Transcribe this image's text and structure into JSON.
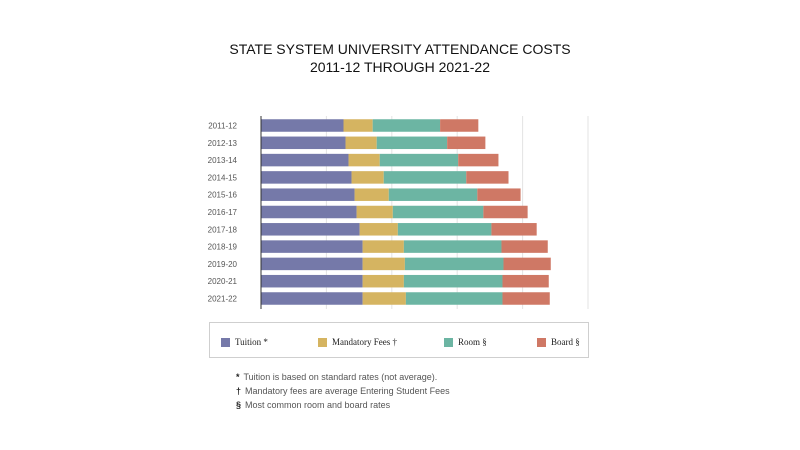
{
  "chart_data": {
    "type": "bar",
    "orientation": "horizontal",
    "stacked": true,
    "title": "STATE SYSTEM UNIVERSITY ATTENDANCE COSTS",
    "subtitle": "2011-12 THROUGH 2021-22",
    "xlabel": "",
    "ylabel": "",
    "categories": [
      "2011-12",
      "2012-13",
      "2013-14",
      "2014-15",
      "2015-16",
      "2016-17",
      "2017-18",
      "2018-19",
      "2019-20",
      "2020-21",
      "2021-22"
    ],
    "series": [
      {
        "name": "Tuition",
        "marker": "*",
        "color": "#7579a9",
        "values": [
          82,
          84,
          87,
          90,
          93,
          95,
          98,
          101,
          101,
          101,
          101
        ]
      },
      {
        "name": "Mandatory Fees",
        "marker": "†",
        "color": "#d5b461",
        "values": [
          29,
          31,
          31,
          32,
          34,
          36,
          38,
          41,
          42,
          41,
          43
        ]
      },
      {
        "name": "Room",
        "marker": "§",
        "color": "#6cb5a3",
        "values": [
          67,
          70,
          78,
          82,
          88,
          90,
          93,
          97,
          98,
          98,
          96
        ]
      },
      {
        "name": "Board",
        "marker": "§",
        "color": "#cf7865",
        "values": [
          38,
          38,
          40,
          42,
          43,
          44,
          45,
          46,
          47,
          46,
          47
        ]
      }
    ],
    "xlim": [
      0,
      325
    ],
    "grid": true,
    "legend_position": "bottom"
  },
  "footnotes": [
    {
      "symbol": "*",
      "text": "Tuition is based on standard rates (not average)."
    },
    {
      "symbol": "†",
      "text": "Mandatory fees are average Entering Student Fees"
    },
    {
      "symbol": "§",
      "text": "Most common room and board rates"
    }
  ]
}
